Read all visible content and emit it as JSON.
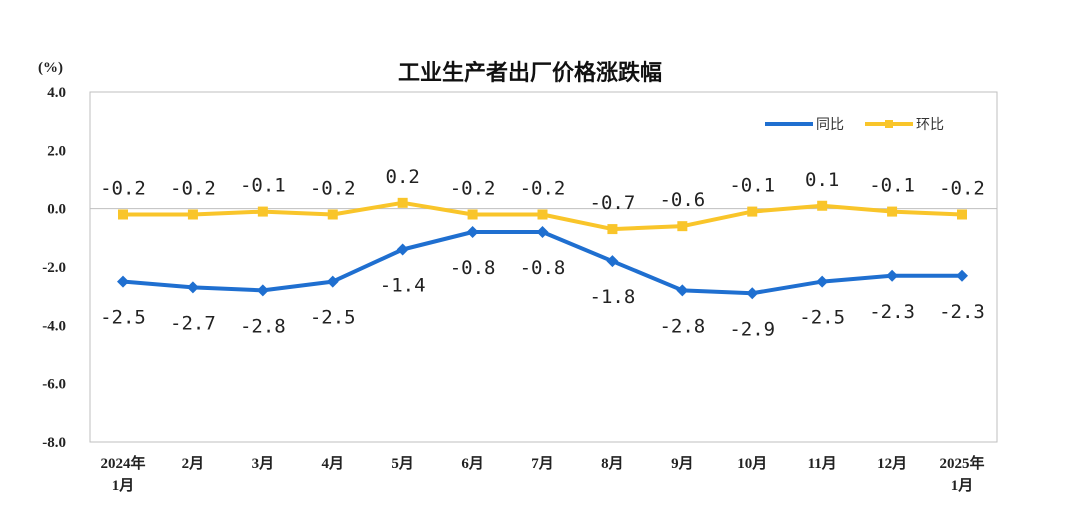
{
  "chart_data": {
    "type": "line",
    "title": "工业生产者出厂价格涨跌幅",
    "ylabel": "(%)",
    "xlabel": "",
    "ylim": [
      -8.0,
      4.0
    ],
    "yticks": [
      "4.0",
      "2.0",
      "0.0",
      "-2.0",
      "-4.0",
      "-6.0",
      "-8.0"
    ],
    "ytick_values": [
      4,
      2,
      0,
      -2,
      -4,
      -6,
      -8
    ],
    "categories": [
      [
        "2024年",
        "1月"
      ],
      [
        "2月"
      ],
      [
        "3月"
      ],
      [
        "4月"
      ],
      [
        "5月"
      ],
      [
        "6月"
      ],
      [
        "7月"
      ],
      [
        "8月"
      ],
      [
        "9月"
      ],
      [
        "10月"
      ],
      [
        "11月"
      ],
      [
        "12月"
      ],
      [
        "2025年",
        "1月"
      ]
    ],
    "legend_position": "top-right",
    "grid": false,
    "series": [
      {
        "name": "同比",
        "color": "#1f6fd0",
        "marker": "diamond",
        "values": [
          -2.5,
          -2.7,
          -2.8,
          -2.5,
          -1.4,
          -0.8,
          -0.8,
          -1.8,
          -2.8,
          -2.9,
          -2.5,
          -2.3,
          -2.3
        ],
        "labels": [
          "-2.5",
          "-2.7",
          "-2.8",
          "-2.5",
          "-1.4",
          "-0.8",
          "-0.8",
          "-1.8",
          "-2.8",
          "-2.9",
          "-2.5",
          "-2.3",
          "-2.3"
        ]
      },
      {
        "name": "环比",
        "color": "#f9c52a",
        "marker": "square",
        "values": [
          -0.2,
          -0.2,
          -0.1,
          -0.2,
          0.2,
          -0.2,
          -0.2,
          -0.7,
          -0.6,
          -0.1,
          0.1,
          -0.1,
          -0.2
        ],
        "labels": [
          "-0.2",
          "-0.2",
          "-0.1",
          "-0.2",
          "0.2",
          "-0.2",
          "-0.2",
          "-0.7",
          "-0.6",
          "-0.1",
          "0.1",
          "-0.1",
          "-0.2"
        ]
      }
    ]
  }
}
